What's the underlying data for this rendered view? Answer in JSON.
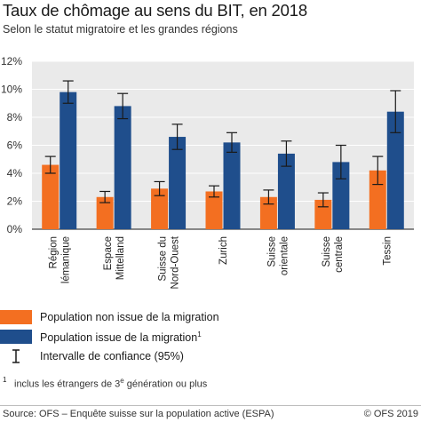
{
  "header": {
    "title": "Taux de chômage au sens du BIT, en 2018",
    "subtitle": "Selon le statut migratoire et les grandes régions"
  },
  "legend": {
    "non_migrant": "Population non issue de la migration",
    "migrant": "Population issue de la migration",
    "migrant_footnote_mark": "1",
    "ci": "Intervalle de confiance (95%)"
  },
  "footnote": {
    "mark": "1",
    "text_before": "inclus les étrangers de 3",
    "sup": "e",
    "text_after": " génération ou plus"
  },
  "footer": {
    "source": "Source: OFS – Enquête suisse sur la population active (ESPA)",
    "copyright": "© OFS 2019"
  },
  "colors": {
    "non_migrant": "#f36f21",
    "migrant": "#1f4e8c",
    "plot_background": "#eaeaea",
    "grid": "#ffffff"
  },
  "chart_data": {
    "type": "bar",
    "title": "Taux de chômage au sens du BIT, en 2018",
    "subtitle": "Selon le statut migratoire et les grandes régions",
    "categories": [
      [
        "Région",
        "lémanique"
      ],
      [
        "Espace",
        "Mittelland"
      ],
      [
        "Suisse du",
        "Nord-Ouest"
      ],
      [
        "Zurich"
      ],
      [
        "Suisse",
        "orientale"
      ],
      [
        "Suisse",
        "centrale"
      ],
      [
        "Tessin"
      ]
    ],
    "ylim": [
      0,
      12
    ],
    "yticks": [
      "0%",
      "2%",
      "4%",
      "6%",
      "8%",
      "10%",
      "12%"
    ],
    "grid": true,
    "series": [
      {
        "name": "Population non issue de la migration",
        "values": [
          4.6,
          2.3,
          2.9,
          2.7,
          2.3,
          2.1,
          4.2
        ],
        "ci_low": [
          4.0,
          1.9,
          2.4,
          2.3,
          1.8,
          1.6,
          3.2
        ],
        "ci_high": [
          5.2,
          2.7,
          3.4,
          3.1,
          2.8,
          2.6,
          5.2
        ]
      },
      {
        "name": "Population issue de la migration",
        "values": [
          9.8,
          8.8,
          6.6,
          6.2,
          5.4,
          4.8,
          8.4
        ],
        "ci_low": [
          9.0,
          7.9,
          5.7,
          5.5,
          4.5,
          3.6,
          6.9
        ],
        "ci_high": [
          10.6,
          9.7,
          7.5,
          6.9,
          6.3,
          6.0,
          9.9
        ]
      }
    ]
  }
}
